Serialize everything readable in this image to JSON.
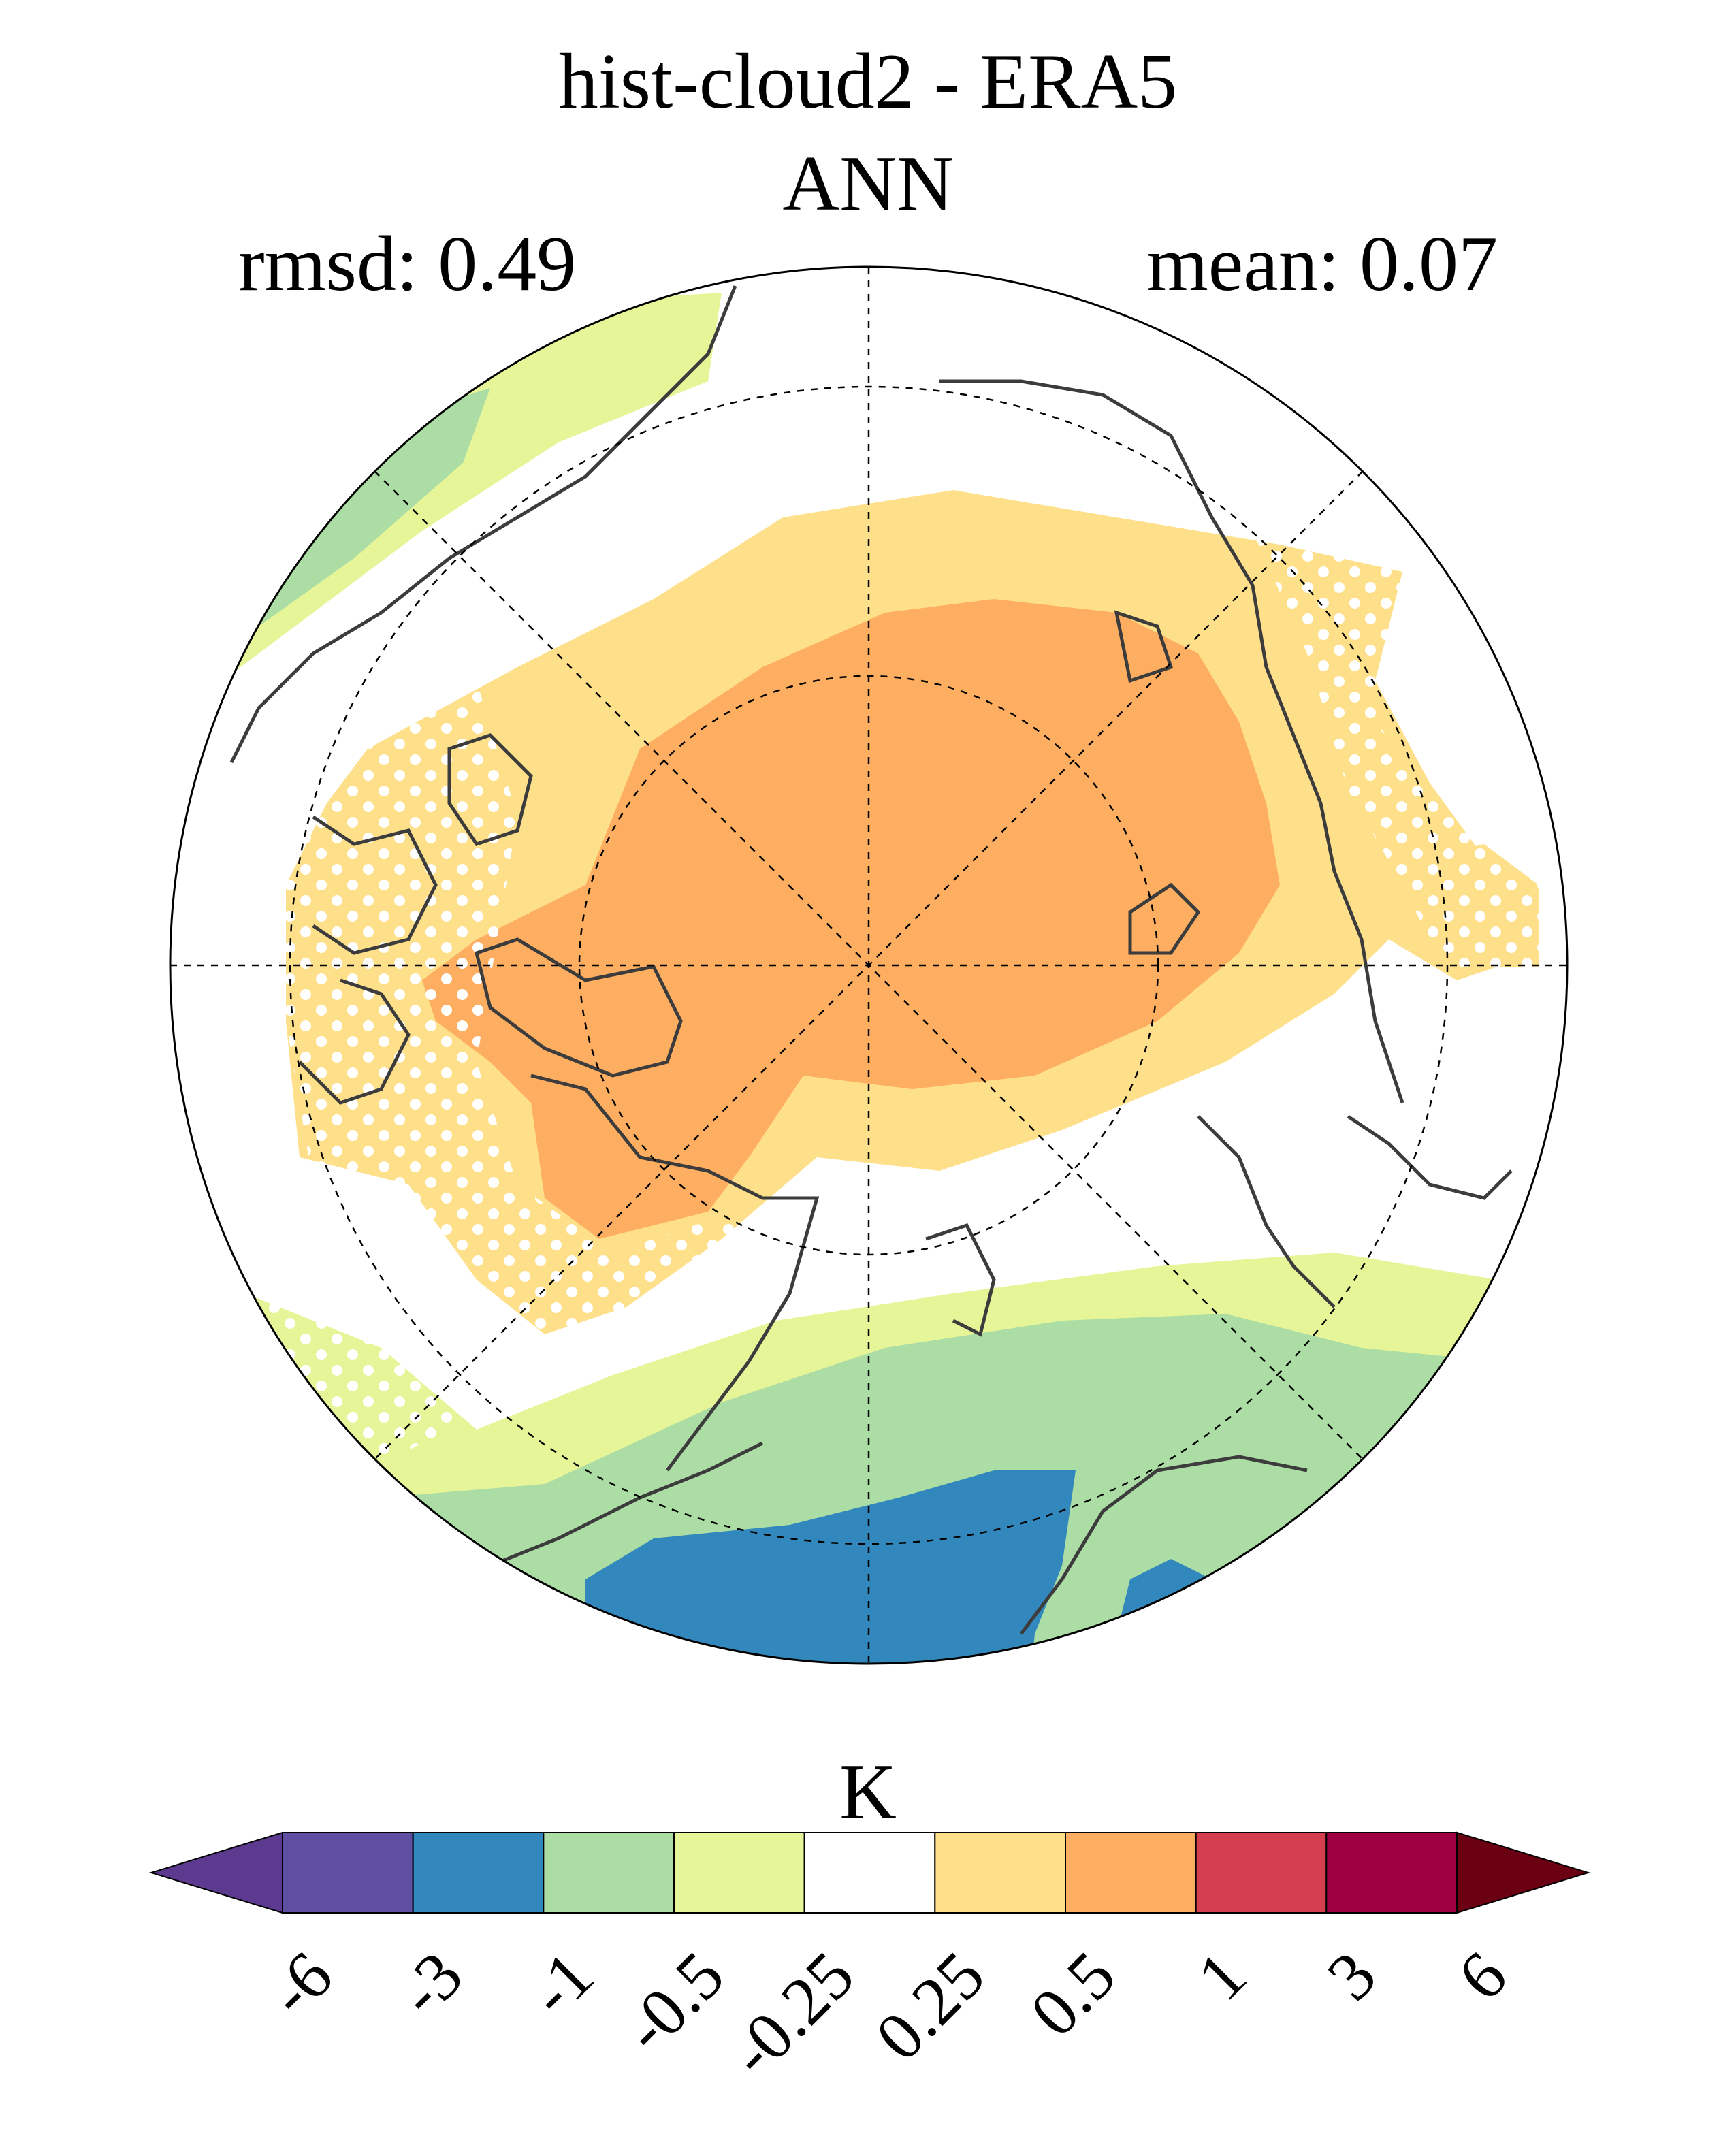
{
  "title": "hist-cloud2 - ERA5",
  "subtitle": "ANN",
  "stats": {
    "rmsd": "rmsd: 0.49",
    "mean": "mean: 0.07"
  },
  "map": {
    "projection": "north polar stereographic",
    "graticule": "dashed"
  },
  "colorbar": {
    "units": "K",
    "tick_labels": [
      "-6",
      "-3",
      "-1",
      "-0.5",
      "-0.25",
      "0.25",
      "0.5",
      "1",
      "3",
      "6"
    ],
    "colors": [
      "#5c3a8f",
      "#5e4fa2",
      "#3288bd",
      "#abdda4",
      "#e6f598",
      "#ffffff",
      "#fee08b",
      "#fdae61",
      "#d53e4f",
      "#9e0142",
      "#6b0013"
    ],
    "extend": "both"
  }
}
